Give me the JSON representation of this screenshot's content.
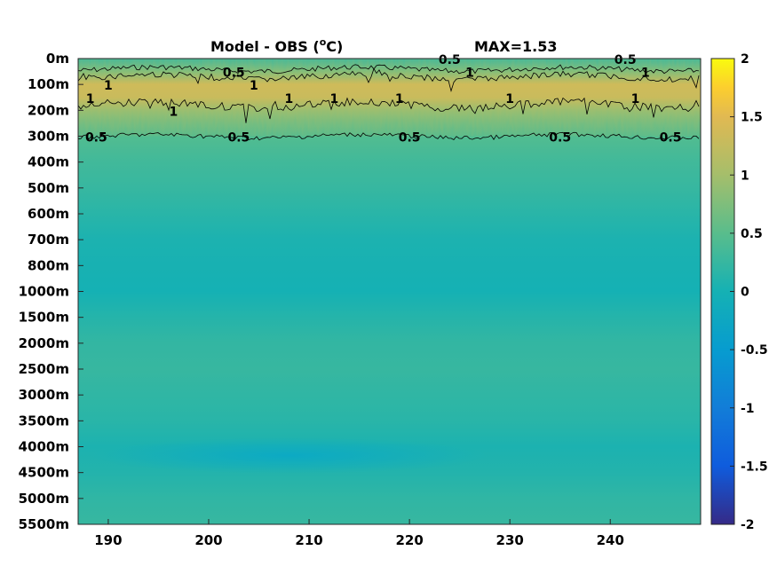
{
  "chart_data": {
    "type": "heatmap",
    "title": "Model - OBS (°C)",
    "title_parts": {
      "main": "Model - OBS (",
      "sup": "o",
      "unit": "C)"
    },
    "max_label": "MAX=1.53",
    "x": {
      "range": [
        187,
        249
      ],
      "ticks": [
        190,
        200,
        210,
        220,
        230,
        240
      ],
      "tick_labels": [
        "190",
        "200",
        "210",
        "220",
        "230",
        "240"
      ]
    },
    "y": {
      "depth_levels": [
        "0m",
        "100m",
        "200m",
        "300m",
        "400m",
        "500m",
        "600m",
        "700m",
        "800m",
        "1000m",
        "1500m",
        "2000m",
        "2500m",
        "3000m",
        "3500m",
        "4000m",
        "4500m",
        "5000m",
        "5500m"
      ]
    },
    "colorbar": {
      "range": [
        -2,
        2
      ],
      "tick_values": [
        2,
        1.5,
        1,
        0.5,
        0,
        -0.5,
        -1,
        -1.5,
        -2
      ],
      "tick_labels": [
        "2",
        "1.5",
        "1",
        "0.5",
        "0",
        "-0.5",
        "-1",
        "-1.5",
        "-2"
      ]
    },
    "profile": [
      {
        "depth": "0m",
        "value": 0.3
      },
      {
        "depth": "50m",
        "value": 0.75
      },
      {
        "depth": "100m",
        "value": 1.35
      },
      {
        "depth": "150m",
        "value": 1.3
      },
      {
        "depth": "200m",
        "value": 0.9
      },
      {
        "depth": "250m",
        "value": 0.65
      },
      {
        "depth": "300m",
        "value": 0.45
      },
      {
        "depth": "400m",
        "value": 0.32
      },
      {
        "depth": "500m",
        "value": 0.25
      },
      {
        "depth": "600m",
        "value": 0.15
      },
      {
        "depth": "700m",
        "value": 0.05
      },
      {
        "depth": "800m",
        "value": 0.02
      },
      {
        "depth": "1000m",
        "value": 0.0
      },
      {
        "depth": "1500m",
        "value": 0.12
      },
      {
        "depth": "2000m",
        "value": 0.22
      },
      {
        "depth": "2500m",
        "value": 0.25
      },
      {
        "depth": "3000m",
        "value": 0.2
      },
      {
        "depth": "3500m",
        "value": 0.15
      },
      {
        "depth": "4000m",
        "value": 0.05
      },
      {
        "depth": "4500m",
        "value": 0.1
      },
      {
        "depth": "5000m",
        "value": 0.2
      },
      {
        "depth": "5500m",
        "value": 0.25
      }
    ],
    "contour_labels": [
      {
        "text": "0.5",
        "x": 202.5,
        "depth": "50m"
      },
      {
        "text": "0.5",
        "x": 224,
        "depth": "0m"
      },
      {
        "text": "0.5",
        "x": 241.5,
        "depth": "0m"
      },
      {
        "text": "1",
        "x": 190,
        "depth": "100m"
      },
      {
        "text": "1",
        "x": 204.5,
        "depth": "100m"
      },
      {
        "text": "1",
        "x": 226,
        "depth": "50m"
      },
      {
        "text": "1",
        "x": 243.5,
        "depth": "50m"
      },
      {
        "text": "1",
        "x": 188.2,
        "depth": "150m"
      },
      {
        "text": "1",
        "x": 208,
        "depth": "150m"
      },
      {
        "text": "1",
        "x": 212.5,
        "depth": "150m"
      },
      {
        "text": "1",
        "x": 219,
        "depth": "150m"
      },
      {
        "text": "1",
        "x": 230,
        "depth": "150m"
      },
      {
        "text": "1",
        "x": 242.5,
        "depth": "150m"
      },
      {
        "text": "1",
        "x": 196.5,
        "depth": "200m"
      },
      {
        "text": "0.5",
        "x": 188.8,
        "depth": "300m"
      },
      {
        "text": "0.5",
        "x": 203,
        "depth": "300m"
      },
      {
        "text": "0.5",
        "x": 220,
        "depth": "300m"
      },
      {
        "text": "0.5",
        "x": 235,
        "depth": "300m"
      },
      {
        "text": "0.5",
        "x": 246,
        "depth": "300m"
      }
    ],
    "grid": false
  }
}
